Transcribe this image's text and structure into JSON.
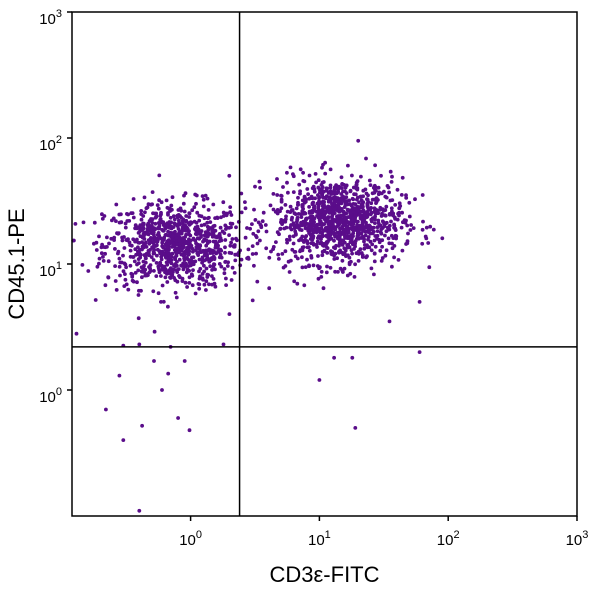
{
  "chart_data": {
    "type": "scatter",
    "xlabel": "CD3ε-FITC",
    "ylabel": "CD45.1-PE",
    "xscale": "log",
    "yscale": "log",
    "xlim": [
      0.12,
      1000
    ],
    "ylim": [
      0.1,
      1000
    ],
    "x_ticks": [
      {
        "value": 1,
        "base": "10",
        "exp": "0"
      },
      {
        "value": 10,
        "base": "10",
        "exp": "1"
      },
      {
        "value": 100,
        "base": "10",
        "exp": "2"
      },
      {
        "value": 1000,
        "base": "10",
        "exp": "3"
      }
    ],
    "y_ticks": [
      {
        "value": 1,
        "base": "10",
        "exp": "0"
      },
      {
        "value": 10,
        "base": "10",
        "exp": "1"
      },
      {
        "value": 100,
        "base": "10",
        "exp": "2"
      },
      {
        "value": 1000,
        "base": "10",
        "exp": "3"
      }
    ],
    "quadrant_gates": {
      "x": 2.4,
      "y": 2.2
    },
    "point_color": "#5a0d8a",
    "grid": false,
    "legend": "none",
    "populations": [
      {
        "center_x": 0.75,
        "center_y": 14,
        "spread_logx": 0.27,
        "spread_logy": 0.17,
        "count": 900
      },
      {
        "center_x": 14,
        "center_y": 22,
        "spread_logx": 0.25,
        "spread_logy": 0.17,
        "count": 1100
      }
    ],
    "outliers": [
      [
        0.22,
        0.7
      ],
      [
        0.3,
        0.4
      ],
      [
        0.42,
        0.52
      ],
      [
        0.6,
        1.0
      ],
      [
        0.8,
        0.6
      ],
      [
        0.98,
        0.48
      ],
      [
        0.52,
        1.7
      ],
      [
        0.28,
        1.3
      ],
      [
        0.9,
        1.7
      ],
      [
        0.67,
        1.35
      ],
      [
        0.4,
        0.11
      ],
      [
        0.27,
        0.1
      ],
      [
        19,
        0.5
      ],
      [
        18,
        1.8
      ],
      [
        10,
        1.2
      ],
      [
        60,
        2.0
      ],
      [
        13,
        1.8
      ],
      [
        660,
        0.1
      ],
      [
        59,
        0.1
      ],
      [
        0.12,
        300
      ],
      [
        0.12,
        105
      ],
      [
        90,
        16
      ],
      [
        60,
        5
      ],
      [
        0.12,
        7
      ],
      [
        0.12,
        5.5
      ],
      [
        0.13,
        2.8
      ],
      [
        0.12,
        4.5
      ],
      [
        2.0,
        4
      ],
      [
        35,
        3.5
      ],
      [
        20,
        95
      ],
      [
        0.4,
        2.3
      ],
      [
        0.7,
        2.2
      ],
      [
        1.8,
        2.3
      ],
      [
        0.3,
        2.25
      ]
    ]
  }
}
